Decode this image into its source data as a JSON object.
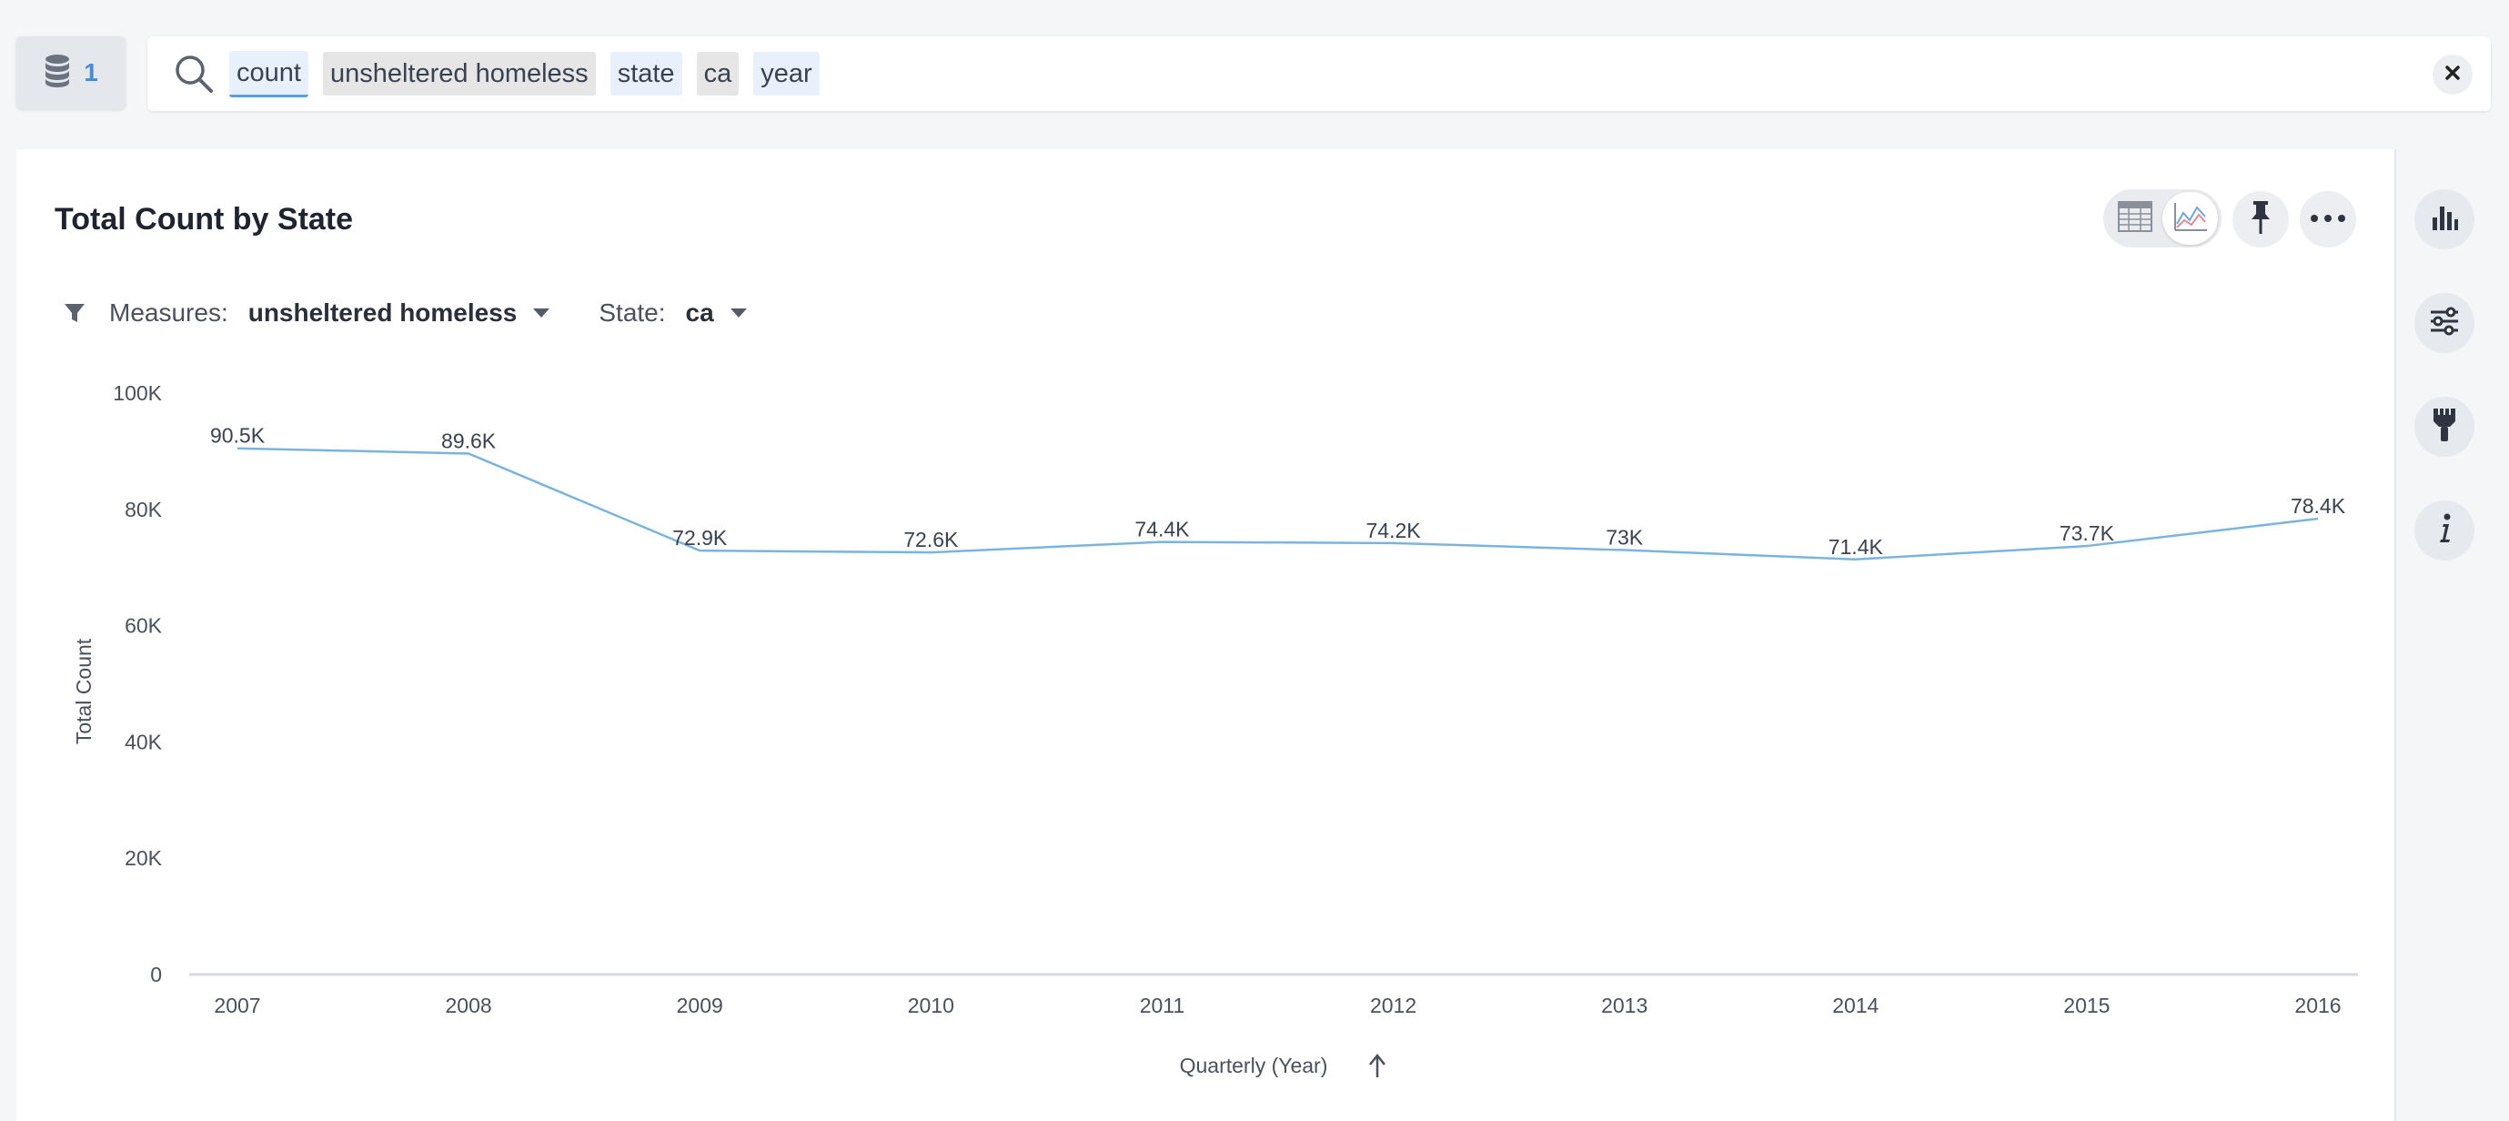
{
  "source": {
    "count": "1",
    "icon": "database-icon"
  },
  "search": {
    "tokens": [
      "count",
      "unsheltered homeless",
      "state",
      "ca",
      "year"
    ],
    "icon": "search-icon",
    "clear_icon": "close-icon"
  },
  "card": {
    "title": "Total Count by State",
    "filters": {
      "measures_label": "Measures:",
      "measures_value": "unsheltered homeless",
      "state_label": "State:",
      "state_value": "ca"
    },
    "actions": [
      "table-view-icon",
      "chart-view-icon",
      "pin-icon",
      "more-icon"
    ]
  },
  "rail": [
    "bar-chart-icon",
    "settings-sliders-icon",
    "brush-icon",
    "info-icon"
  ],
  "colors": {
    "line": "#7ab3e0",
    "accent": "#4b8bd6"
  },
  "chart_data": {
    "type": "line",
    "title": "",
    "xlabel": "Quarterly (Year)",
    "ylabel": "Total Count",
    "ylim": [
      0,
      100000
    ],
    "yticks": [
      "0",
      "20K",
      "40K",
      "60K",
      "80K",
      "100K"
    ],
    "x": [
      "2007",
      "2008",
      "2009",
      "2010",
      "2011",
      "2012",
      "2013",
      "2014",
      "2015",
      "2016"
    ],
    "series": [
      {
        "values": [
          90500,
          89600,
          72900,
          72600,
          74400,
          74200,
          73000,
          71400,
          73700,
          78400
        ],
        "labels": [
          "90.5K",
          "89.6K",
          "72.9K",
          "72.6K",
          "74.4K",
          "74.2K",
          "73K",
          "71.4K",
          "73.7K",
          "78.4K"
        ]
      }
    ],
    "grid": false,
    "sort_indicator": "ascending"
  }
}
